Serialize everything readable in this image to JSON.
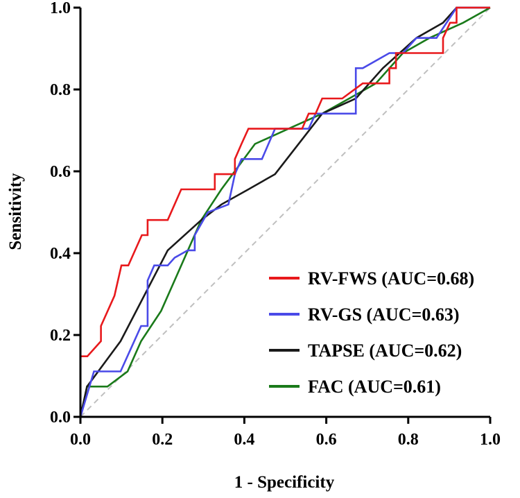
{
  "chart_data": {
    "type": "line",
    "title": "",
    "xlabel": "1 - Specificity",
    "ylabel": "Sensitivity",
    "xlim": [
      0,
      1
    ],
    "ylim": [
      0,
      1
    ],
    "xticks": [
      "0.0",
      "0.2",
      "0.4",
      "0.6",
      "0.8",
      "1.0"
    ],
    "yticks": [
      "0.0",
      "0.2",
      "0.4",
      "0.6",
      "0.8",
      "1.0"
    ],
    "grid": false,
    "legend_position": "bottom-right",
    "reference_line": {
      "style": "dashed",
      "color": "#bfbfbf",
      "points": [
        [
          0,
          0
        ],
        [
          1,
          1
        ]
      ]
    },
    "series": [
      {
        "name": "RV-FWS (AUC=0.68)",
        "color": "#e8191c",
        "points": [
          [
            0,
            0
          ],
          [
            0,
            0.148
          ],
          [
            0.017,
            0.148
          ],
          [
            0.05,
            0.185
          ],
          [
            0.05,
            0.222
          ],
          [
            0.083,
            0.296
          ],
          [
            0.1,
            0.37
          ],
          [
            0.117,
            0.37
          ],
          [
            0.15,
            0.444
          ],
          [
            0.164,
            0.444
          ],
          [
            0.164,
            0.481
          ],
          [
            0.213,
            0.481
          ],
          [
            0.246,
            0.556
          ],
          [
            0.328,
            0.556
          ],
          [
            0.328,
            0.593
          ],
          [
            0.377,
            0.593
          ],
          [
            0.377,
            0.63
          ],
          [
            0.393,
            0.667
          ],
          [
            0.41,
            0.704
          ],
          [
            0.541,
            0.704
          ],
          [
            0.557,
            0.741
          ],
          [
            0.574,
            0.741
          ],
          [
            0.59,
            0.778
          ],
          [
            0.639,
            0.778
          ],
          [
            0.689,
            0.815
          ],
          [
            0.754,
            0.815
          ],
          [
            0.754,
            0.852
          ],
          [
            0.77,
            0.852
          ],
          [
            0.77,
            0.889
          ],
          [
            0.885,
            0.889
          ],
          [
            0.885,
            0.926
          ],
          [
            0.902,
            0.963
          ],
          [
            0.918,
            0.963
          ],
          [
            0.918,
            1.0
          ],
          [
            1.0,
            1.0
          ]
        ]
      },
      {
        "name": "RV-GS (AUC=0.63)",
        "color": "#4a4ae8",
        "points": [
          [
            0,
            0
          ],
          [
            0.033,
            0.111
          ],
          [
            0.098,
            0.111
          ],
          [
            0.148,
            0.222
          ],
          [
            0.164,
            0.222
          ],
          [
            0.164,
            0.333
          ],
          [
            0.18,
            0.37
          ],
          [
            0.213,
            0.37
          ],
          [
            0.23,
            0.389
          ],
          [
            0.262,
            0.407
          ],
          [
            0.279,
            0.407
          ],
          [
            0.279,
            0.444
          ],
          [
            0.311,
            0.5
          ],
          [
            0.361,
            0.519
          ],
          [
            0.377,
            0.593
          ],
          [
            0.393,
            0.63
          ],
          [
            0.443,
            0.63
          ],
          [
            0.475,
            0.704
          ],
          [
            0.557,
            0.704
          ],
          [
            0.574,
            0.741
          ],
          [
            0.672,
            0.741
          ],
          [
            0.672,
            0.852
          ],
          [
            0.689,
            0.852
          ],
          [
            0.754,
            0.889
          ],
          [
            0.787,
            0.889
          ],
          [
            0.82,
            0.926
          ],
          [
            0.869,
            0.926
          ],
          [
            0.918,
            1.0
          ],
          [
            1.0,
            1.0
          ]
        ]
      },
      {
        "name": "TAPSE (AUC=0.62)",
        "color": "#1a1a1a",
        "points": [
          [
            0,
            0
          ],
          [
            0.016,
            0.074
          ],
          [
            0.098,
            0.185
          ],
          [
            0.213,
            0.407
          ],
          [
            0.295,
            0.481
          ],
          [
            0.344,
            0.519
          ],
          [
            0.41,
            0.556
          ],
          [
            0.475,
            0.593
          ],
          [
            0.59,
            0.741
          ],
          [
            0.672,
            0.778
          ],
          [
            0.738,
            0.852
          ],
          [
            0.82,
            0.926
          ],
          [
            0.885,
            0.963
          ],
          [
            0.918,
            1.0
          ],
          [
            1.0,
            1.0
          ]
        ]
      },
      {
        "name": "FAC (AUC=0.61)",
        "color": "#1a7a1a",
        "points": [
          [
            0,
            0
          ],
          [
            0.016,
            0.074
          ],
          [
            0.066,
            0.074
          ],
          [
            0.115,
            0.111
          ],
          [
            0.148,
            0.185
          ],
          [
            0.197,
            0.259
          ],
          [
            0.246,
            0.37
          ],
          [
            0.295,
            0.481
          ],
          [
            0.344,
            0.556
          ],
          [
            0.426,
            0.667
          ],
          [
            0.508,
            0.704
          ],
          [
            0.59,
            0.741
          ],
          [
            0.656,
            0.778
          ],
          [
            0.721,
            0.815
          ],
          [
            0.787,
            0.889
          ],
          [
            0.852,
            0.926
          ],
          [
            0.934,
            0.963
          ],
          [
            1.0,
            1.0
          ]
        ]
      }
    ]
  }
}
